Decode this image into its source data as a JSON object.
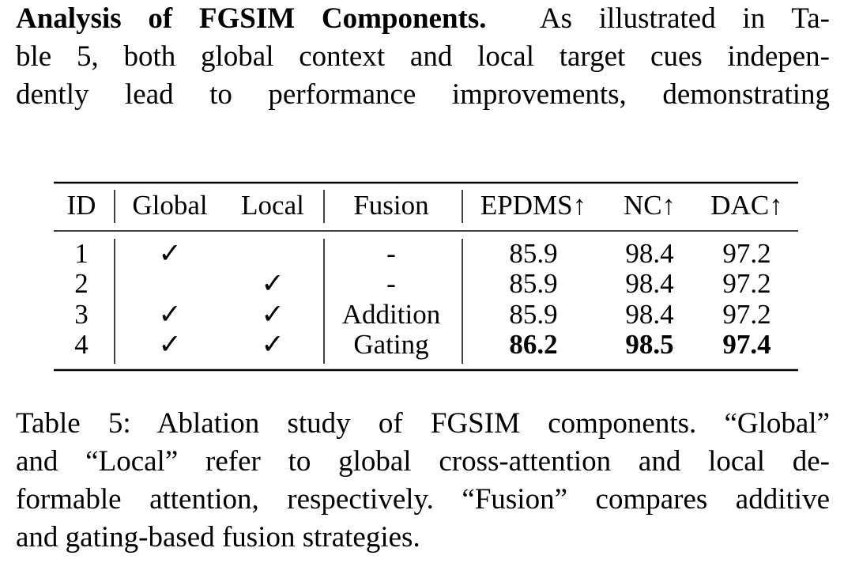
{
  "paragraph": {
    "heading": "Analysis of FGSIM Components.",
    "lines": [
      "As illustrated in Ta-",
      "ble 5, both global context and local target cues indepen-",
      "dently lead to performance improvements, demonstrating"
    ]
  },
  "table": {
    "header": [
      "ID",
      "Global",
      "Local",
      "Fusion",
      "EPDMS↑",
      "NC↑",
      "DAC↑"
    ],
    "rows": [
      {
        "cells": [
          1,
          "✓",
          null,
          "-",
          85.9,
          98.4,
          97.2
        ]
      },
      {
        "cells": [
          2,
          null,
          "✓",
          "-",
          85.9,
          98.4,
          97.2
        ]
      },
      {
        "cells": [
          3,
          "✓",
          "✓",
          "Addition",
          85.9,
          98.4,
          97.2
        ]
      },
      {
        "cells": [
          4,
          "✓",
          "✓",
          "Gating",
          86.2,
          98.5,
          97.4
        ],
        "bold": true
      }
    ]
  },
  "caption": {
    "lines": [
      "Table 5: Ablation study of FGSIM components. “Global”",
      "and “Local” refer to global cross-attention and local de-",
      "formable attention, respectively. “Fusion” compares additive",
      "and gating-based fusion strategies."
    ]
  }
}
